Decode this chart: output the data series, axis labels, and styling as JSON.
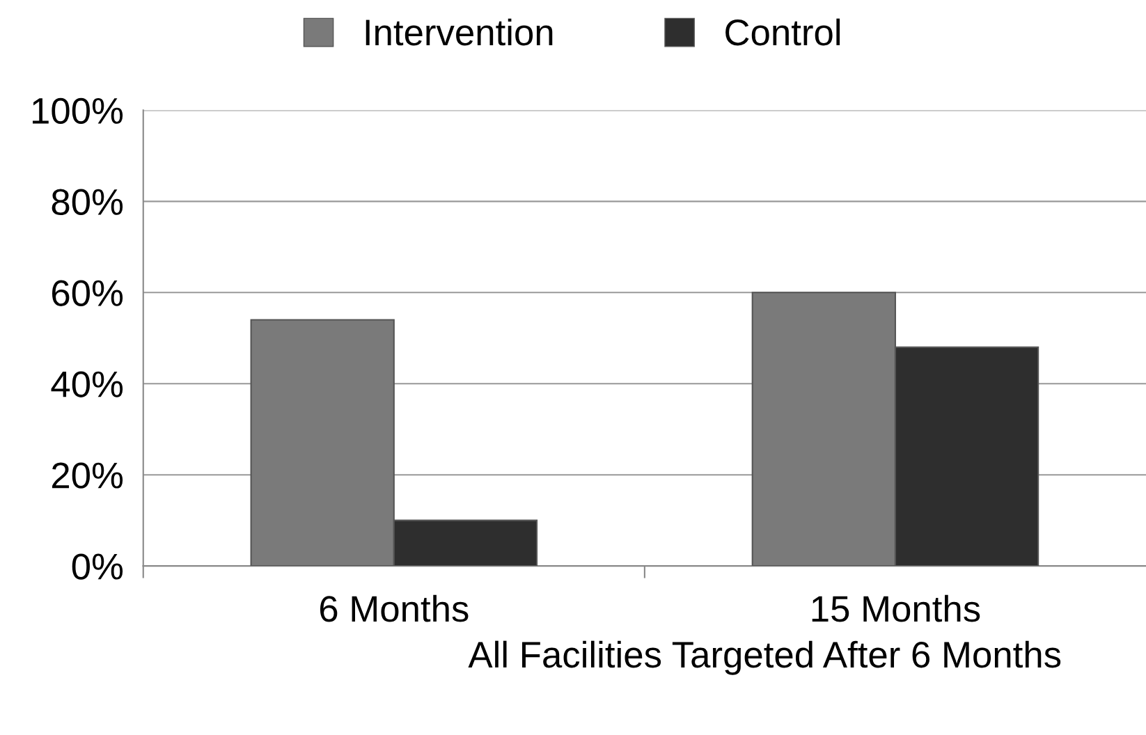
{
  "chart_data": {
    "type": "bar",
    "xlabel": "All Facilities Targeted After 6 Months",
    "categories": [
      "6 Months",
      "15 Months"
    ],
    "series": [
      {
        "name": "Intervention",
        "color": "#7a7a7a",
        "values": [
          54,
          60
        ]
      },
      {
        "name": "Control",
        "color": "#2e2e2e",
        "values": [
          10,
          48
        ]
      }
    ],
    "ylim": [
      0,
      100
    ],
    "yticks": [
      {
        "value": 0,
        "label": "0%"
      },
      {
        "value": 20,
        "label": "20%"
      },
      {
        "value": 40,
        "label": "40%"
      },
      {
        "value": 60,
        "label": "60%"
      },
      {
        "value": 80,
        "label": "80%"
      },
      {
        "value": 100,
        "label": "100%"
      }
    ],
    "grid": "y",
    "legend": "top"
  }
}
